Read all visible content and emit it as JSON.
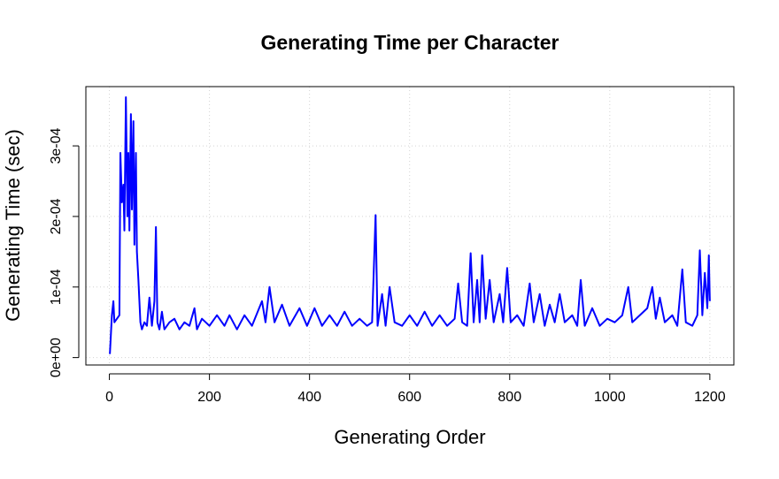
{
  "chart_data": {
    "type": "line",
    "title": "Generating Time per Character",
    "x_label": "Generating Order",
    "y_label": "Generating Time (sec)",
    "color": "#0000ff",
    "grid": true,
    "xlim": [
      -47,
      1248
    ],
    "ylim": [
      -1.05e-05,
      0.000384
    ],
    "xticks": [
      0,
      200,
      400,
      600,
      800,
      1000,
      1200
    ],
    "yticks": [
      {
        "value": 0,
        "label": "0e+00"
      },
      {
        "value": 0.0001,
        "label": "1e-04"
      },
      {
        "value": 0.0002,
        "label": "2e-04"
      },
      {
        "value": 0.0003,
        "label": "3e-04"
      }
    ],
    "x": [
      1,
      5,
      8,
      10,
      15,
      20,
      22,
      25,
      28,
      30,
      33,
      36,
      38,
      40,
      43,
      45,
      48,
      50,
      53,
      55,
      58,
      62,
      65,
      70,
      75,
      80,
      85,
      90,
      93,
      96,
      100,
      105,
      110,
      120,
      130,
      140,
      150,
      160,
      170,
      175,
      185,
      200,
      215,
      230,
      240,
      255,
      270,
      285,
      305,
      312,
      320,
      330,
      345,
      360,
      380,
      395,
      410,
      425,
      440,
      455,
      470,
      485,
      500,
      515,
      525,
      532,
      536,
      545,
      552,
      560,
      570,
      585,
      600,
      615,
      630,
      645,
      660,
      675,
      690,
      697,
      705,
      715,
      722,
      728,
      735,
      740,
      745,
      752,
      760,
      768,
      780,
      787,
      795,
      802,
      815,
      828,
      840,
      848,
      860,
      870,
      880,
      890,
      900,
      910,
      925,
      935,
      942,
      950,
      965,
      980,
      995,
      1010,
      1025,
      1037,
      1045,
      1060,
      1075,
      1085,
      1092,
      1100,
      1110,
      1125,
      1135,
      1145,
      1152,
      1165,
      1175,
      1180,
      1185,
      1190,
      1195,
      1198,
      1200
    ],
    "values": [
      5e-06,
      6e-05,
      8e-05,
      5e-05,
      5.5e-05,
      6e-05,
      0.00029,
      0.00022,
      0.000245,
      0.00018,
      0.000369,
      0.0002,
      0.00029,
      0.00018,
      0.000345,
      0.00021,
      0.000335,
      0.00016,
      0.00029,
      0.00015,
      0.00011,
      5e-05,
      4e-05,
      5e-05,
      4.5e-05,
      8.5e-05,
      4.5e-05,
      8e-05,
      0.000185,
      5e-05,
      4e-05,
      6.5e-05,
      4e-05,
      5e-05,
      5.5e-05,
      4e-05,
      5e-05,
      4.5e-05,
      7e-05,
      4e-05,
      5.5e-05,
      4.5e-05,
      6e-05,
      4.5e-05,
      6e-05,
      4e-05,
      6e-05,
      4.5e-05,
      8e-05,
      5e-05,
      0.0001,
      5e-05,
      7.5e-05,
      4.5e-05,
      7e-05,
      4.5e-05,
      7e-05,
      4.5e-05,
      6e-05,
      4.5e-05,
      6.5e-05,
      4.5e-05,
      5.5e-05,
      4.5e-05,
      5e-05,
      0.000202,
      4.5e-05,
      9e-05,
      4.5e-05,
      0.0001,
      5e-05,
      4.5e-05,
      6e-05,
      4.5e-05,
      6.5e-05,
      4.5e-05,
      6e-05,
      4.5e-05,
      5.5e-05,
      0.000105,
      5e-05,
      4.5e-05,
      0.000148,
      5e-05,
      0.00011,
      5e-05,
      0.000145,
      5.5e-05,
      0.00011,
      5e-05,
      9e-05,
      5e-05,
      0.000127,
      5e-05,
      6e-05,
      4.5e-05,
      0.000105,
      5e-05,
      9e-05,
      4.5e-05,
      7.5e-05,
      5e-05,
      9e-05,
      5e-05,
      6e-05,
      4.5e-05,
      0.00011,
      4.5e-05,
      7e-05,
      4.5e-05,
      5.5e-05,
      5e-05,
      6e-05,
      0.0001,
      5e-05,
      6e-05,
      7e-05,
      0.0001,
      5.5e-05,
      8.5e-05,
      5e-05,
      6e-05,
      4.5e-05,
      0.000125,
      5e-05,
      4.5e-05,
      6e-05,
      0.000152,
      6e-05,
      0.00012,
      7e-05,
      0.000145,
      8e-05
    ]
  }
}
